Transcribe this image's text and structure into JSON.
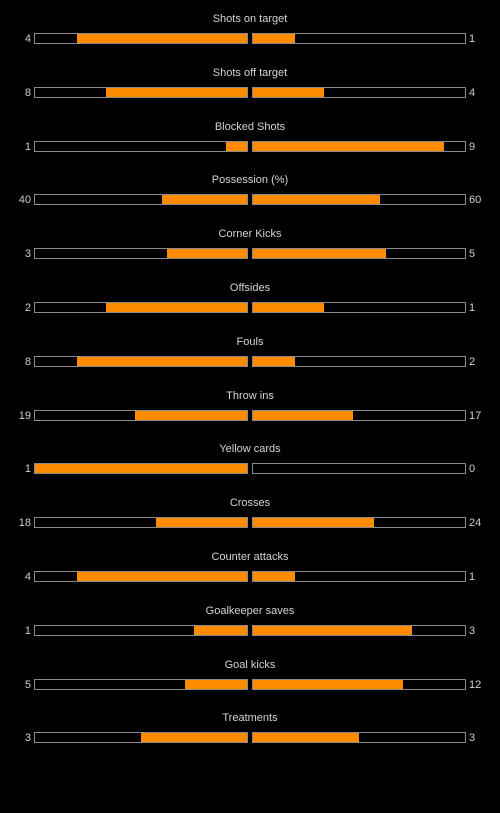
{
  "colors": {
    "background": "#000000",
    "bar_fill": "#ff8c00",
    "bar_border": "#8a8a8a",
    "text": "#cfcfcf"
  },
  "chart_data": {
    "type": "bar",
    "orientation": "horizontal-butterfly",
    "grid": false,
    "legend": "none",
    "stats": [
      {
        "label": "Shots on target",
        "home": 4,
        "away": 1
      },
      {
        "label": "Shots off target",
        "home": 8,
        "away": 4
      },
      {
        "label": "Blocked Shots",
        "home": 1,
        "away": 9
      },
      {
        "label": "Possession (%)",
        "home": 40,
        "away": 60
      },
      {
        "label": "Corner Kicks",
        "home": 3,
        "away": 5
      },
      {
        "label": "Offsides",
        "home": 2,
        "away": 1
      },
      {
        "label": "Fouls",
        "home": 8,
        "away": 2
      },
      {
        "label": "Throw ins",
        "home": 19,
        "away": 17
      },
      {
        "label": "Yellow cards",
        "home": 1,
        "away": 0
      },
      {
        "label": "Crosses",
        "home": 18,
        "away": 24
      },
      {
        "label": "Counter attacks",
        "home": 4,
        "away": 1
      },
      {
        "label": "Goalkeeper saves",
        "home": 1,
        "away": 3
      },
      {
        "label": "Goal kicks",
        "home": 5,
        "away": 12
      },
      {
        "label": "Treatments",
        "home": 3,
        "away": 3
      }
    ]
  }
}
